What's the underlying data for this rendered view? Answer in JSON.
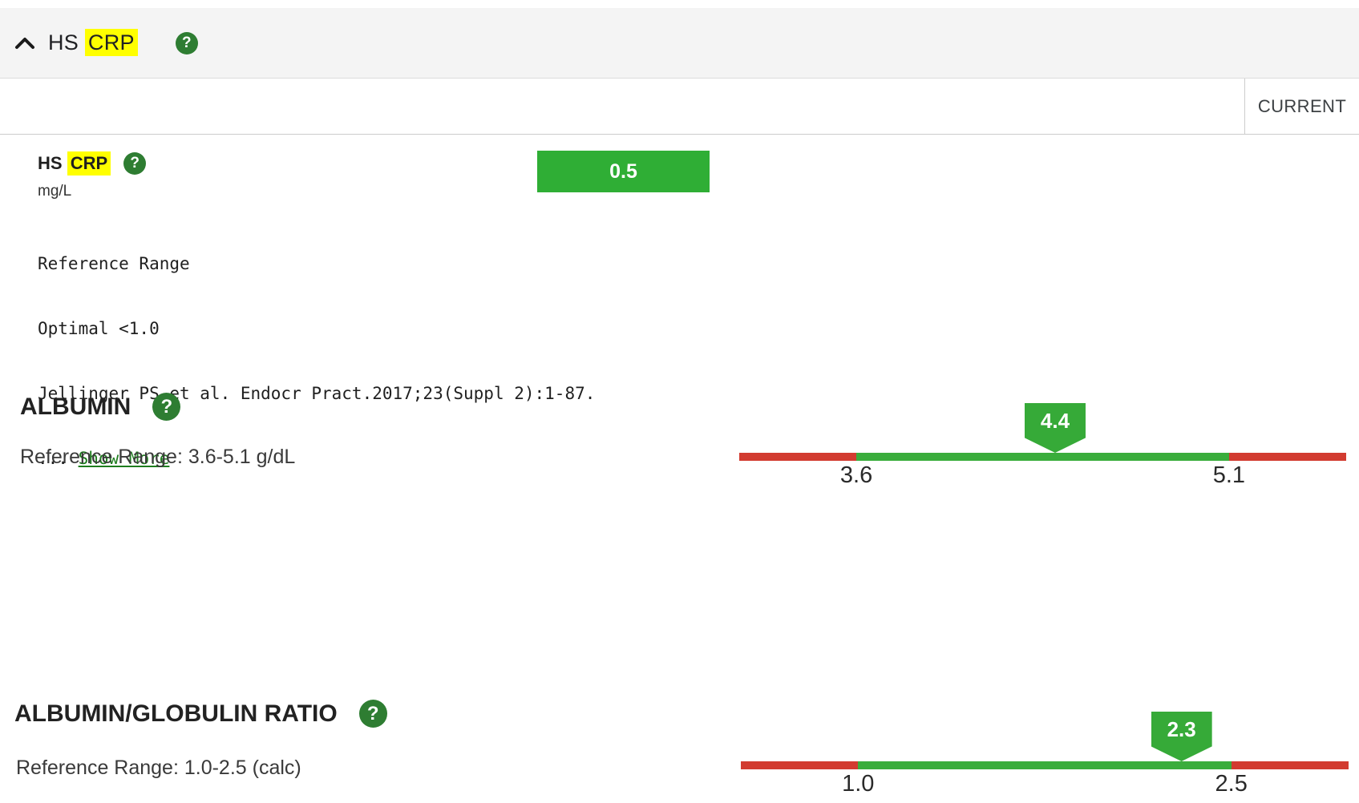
{
  "header": {
    "title_prefix": "HS",
    "title_highlight": "CRP"
  },
  "columns": {
    "current_label": "CURRENT"
  },
  "icons": {
    "help_glyph": "?"
  },
  "hs_crp": {
    "name_prefix": "HS",
    "name_highlight": "CRP",
    "unit": "mg/L",
    "result": "0.5",
    "reference_lines": [
      "Reference Range",
      "Optimal <1.0",
      "Jellinger PS et al. Endocr Pract.2017;23(Suppl 2):1-87."
    ],
    "ellipsis": "...",
    "show_more_label": "Show More"
  },
  "albumin": {
    "title": "ALBUMIN",
    "reference_range": "Reference Range: 3.6-5.1 g/dL",
    "value": "4.4",
    "range_low": "3.6",
    "range_high": "5.1"
  },
  "ag_ratio": {
    "title": "ALBUMIN/GLOBULIN RATIO",
    "reference_range": "Reference Range: 1.0-2.5 (calc)",
    "value": "2.3",
    "range_low": "1.0",
    "range_high": "2.5"
  },
  "colors": {
    "result_green": "#2fae35",
    "bar_green": "#3aad3c",
    "bar_red": "#d23b30",
    "help_green": "#2e7d32",
    "highlight_yellow": "#ffff00"
  }
}
